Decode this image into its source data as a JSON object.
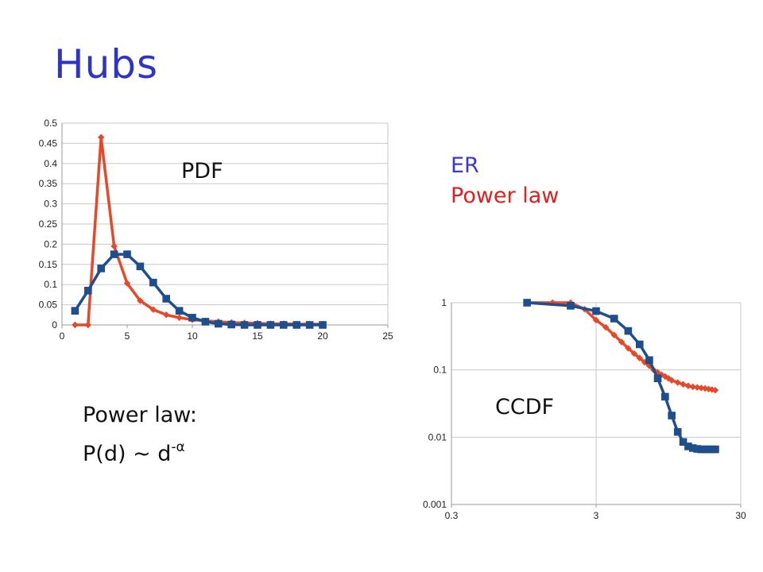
{
  "slide": {
    "title": "Hubs",
    "note_line1": "Power law:",
    "note_line2_prefix": "P(d) ~ d",
    "note_exponent": "-α"
  },
  "colors": {
    "er": "#1f4e8c",
    "power_law": "#e8482a",
    "title": "#2f34c8",
    "legend_er": "#3a3ad0",
    "legend_pl": "#e02020"
  },
  "legend": {
    "er": "ER",
    "power_law": "Power law"
  },
  "chart_data": [
    {
      "type": "line",
      "label": "PDF",
      "xlim": [
        0,
        25
      ],
      "ylim": [
        0,
        0.5
      ],
      "x_ticks": [
        "0",
        "5",
        "10",
        "15",
        "20",
        "25"
      ],
      "y_ticks": [
        "0",
        "0.05",
        "0.1",
        "0.15",
        "0.2",
        "0.25",
        "0.3",
        "0.35",
        "0.4",
        "0.45",
        "0.5"
      ],
      "grid": true,
      "series": [
        {
          "legend_key": "power_law",
          "color": "#e8482a",
          "marker": "diamond",
          "x": [
            1,
            2,
            3,
            4,
            5,
            6,
            7,
            8,
            9,
            10,
            11,
            12,
            13,
            14,
            15,
            16,
            17,
            18,
            19,
            20
          ],
          "y": [
            0,
            0,
            0.465,
            0.195,
            0.103,
            0.06,
            0.038,
            0.025,
            0.018,
            0.013,
            0.01,
            0.008,
            0.006,
            0.005,
            0.004,
            0.003,
            0.003,
            0.002,
            0.002,
            0.002
          ]
        },
        {
          "legend_key": "er",
          "color": "#1f4e8c",
          "marker": "square",
          "x": [
            1,
            2,
            3,
            4,
            5,
            6,
            7,
            8,
            9,
            10,
            11,
            12,
            13,
            14,
            15,
            16,
            17,
            18,
            19,
            20
          ],
          "y": [
            0.035,
            0.085,
            0.14,
            0.175,
            0.175,
            0.145,
            0.105,
            0.065,
            0.035,
            0.018,
            0.008,
            0.003,
            0.001,
            0,
            0,
            0,
            0,
            0,
            0,
            0
          ]
        }
      ]
    },
    {
      "type": "line",
      "label": "CCDF",
      "x_scale": "log",
      "y_scale": "log",
      "xlim": [
        0.3,
        30
      ],
      "ylim": [
        0.001,
        1
      ],
      "x_ticks": [
        "0.3",
        "3",
        "30"
      ],
      "y_ticks": [
        "0.001",
        "0.01",
        "0.1",
        "1"
      ],
      "grid": true,
      "series": [
        {
          "legend_key": "power_law",
          "color": "#e8482a",
          "marker": "diamond",
          "x": [
            1,
            1.5,
            2,
            2.5,
            3,
            3.5,
            4,
            4.5,
            5,
            5.5,
            6,
            6.5,
            7,
            7.5,
            8,
            8.5,
            9,
            9.5,
            10,
            11,
            12,
            13,
            14,
            15,
            16,
            17,
            18,
            19,
            20
          ],
          "y": [
            1,
            1,
            1,
            0.8,
            0.55,
            0.43,
            0.33,
            0.26,
            0.21,
            0.175,
            0.15,
            0.13,
            0.115,
            0.1,
            0.092,
            0.085,
            0.08,
            0.075,
            0.07,
            0.065,
            0.061,
            0.058,
            0.056,
            0.055,
            0.054,
            0.053,
            0.052,
            0.051,
            0.05
          ]
        },
        {
          "legend_key": "er",
          "color": "#1f4e8c",
          "marker": "square",
          "x": [
            1,
            2,
            3,
            4,
            5,
            6,
            7,
            8,
            9,
            10,
            11,
            12,
            13,
            14,
            15,
            16,
            17,
            18,
            19,
            20
          ],
          "y": [
            1,
            0.9,
            0.75,
            0.58,
            0.38,
            0.24,
            0.14,
            0.075,
            0.04,
            0.021,
            0.012,
            0.0085,
            0.0073,
            0.0069,
            0.0067,
            0.0066,
            0.0066,
            0.0066,
            0.0066,
            0.0066
          ]
        }
      ]
    }
  ]
}
